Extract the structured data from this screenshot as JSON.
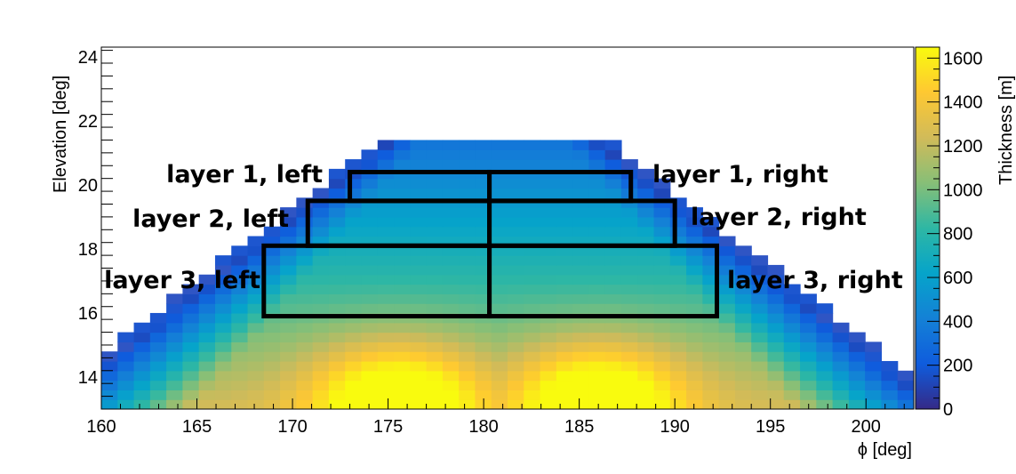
{
  "chart_data": {
    "type": "heatmap",
    "title": "",
    "xlabel": "ϕ [deg]",
    "ylabel": "Elevation [deg]",
    "zlabel": "Thickness [m]",
    "xlim": [
      160,
      202.5
    ],
    "ylim": [
      13,
      24.3
    ],
    "zlim": [
      0,
      1650
    ],
    "x_ticks": [
      160,
      165,
      170,
      175,
      180,
      185,
      190,
      195,
      200
    ],
    "y_ticks": [
      14,
      16,
      18,
      20,
      22,
      24
    ],
    "z_ticks": [
      0,
      200,
      400,
      600,
      800,
      1000,
      1200,
      1400,
      1600
    ],
    "x_tick_labels": [
      "160",
      "165",
      "170",
      "175",
      "180",
      "185",
      "190",
      "195",
      "200"
    ],
    "y_tick_labels": [
      "14",
      "16",
      "18",
      "20",
      "22",
      "24"
    ],
    "z_tick_labels": [
      "0",
      "200",
      "400",
      "600",
      "800",
      "1000",
      "1200",
      "1400",
      "1600"
    ],
    "grid": false,
    "colormap": "parula",
    "colormap_stops": [
      "#352a87",
      "#0f5cdd",
      "#1481d6",
      "#06a4ca",
      "#2eb7a4",
      "#87bf77",
      "#d1bb59",
      "#fec832",
      "#f9fb0e"
    ],
    "boundary_colors": [
      "#2f55c4",
      "#1d56cf"
    ],
    "field_description": {
      "peak_1": {
        "phi": 175.5,
        "elevation": 13.3,
        "thickness": 1600
      },
      "peak_2": {
        "phi": 186.0,
        "elevation": 13.3,
        "thickness": 1600
      },
      "ridge_center_phi": 180.5,
      "top_elevation": 21.3
    },
    "regions": [
      {
        "label": "layer 1, left",
        "phi": [
          173.0,
          180.3
        ],
        "elevation": [
          19.5,
          20.4
        ]
      },
      {
        "label": "layer 1, right",
        "phi": [
          180.3,
          187.7
        ],
        "elevation": [
          19.5,
          20.4
        ]
      },
      {
        "label": "layer 2, left",
        "phi": [
          170.8,
          180.3
        ],
        "elevation": [
          18.1,
          19.5
        ]
      },
      {
        "label": "layer 2, right",
        "phi": [
          180.3,
          190.0
        ],
        "elevation": [
          18.1,
          19.5
        ]
      },
      {
        "label": "layer 3, left",
        "phi": [
          168.5,
          180.3
        ],
        "elevation": [
          15.9,
          18.1
        ]
      },
      {
        "label": "layer 3, right",
        "phi": [
          180.3,
          192.2
        ],
        "elevation": [
          15.9,
          18.1
        ]
      }
    ]
  }
}
